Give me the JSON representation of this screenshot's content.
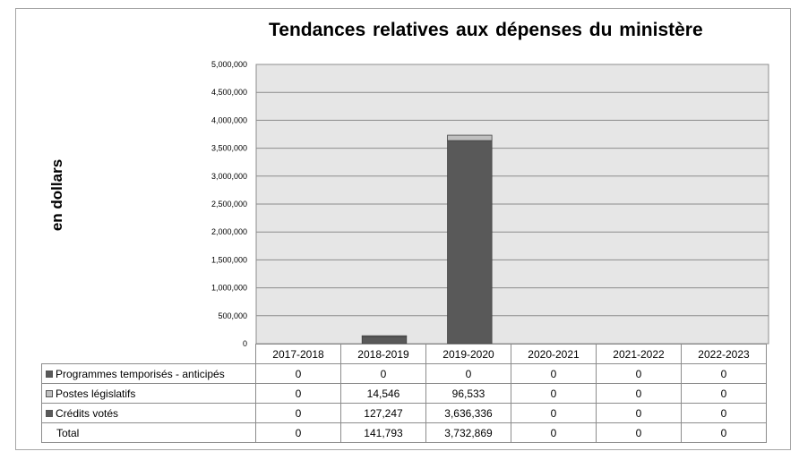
{
  "chart_data": {
    "type": "bar",
    "stacked": true,
    "title": "Tendances relatives aux dépenses du ministère",
    "ylabel": "en dollars",
    "xlabel": "",
    "ylim": [
      0,
      5000000
    ],
    "y_ticks": [
      0,
      500000,
      1000000,
      1500000,
      2000000,
      2500000,
      3000000,
      3500000,
      4000000,
      4500000,
      5000000
    ],
    "y_tick_labels": [
      "0",
      "500,000",
      "1,000,000",
      "1,500,000",
      "2,000,000",
      "2,500,000",
      "3,000,000",
      "3,500,000",
      "4,000,000",
      "4,500,000",
      "5,000,000"
    ],
    "grid": true,
    "legend": "data-table",
    "categories": [
      "2017-2018",
      "2018-2019",
      "2019-2020",
      "2020-2021",
      "2021-2022",
      "2022-2023"
    ],
    "series": [
      {
        "name": "Programmes temporisés - anticipés",
        "values": [
          0,
          0,
          0,
          0,
          0,
          0
        ],
        "labels": [
          "0",
          "0",
          "0",
          "0",
          "0",
          "0"
        ],
        "color": "#595959"
      },
      {
        "name": "Postes législatifs",
        "values": [
          0,
          14546,
          96533,
          0,
          0,
          0
        ],
        "labels": [
          "0",
          "14,546",
          "96,533",
          "0",
          "0",
          "0"
        ],
        "color": "#bfbfbf"
      },
      {
        "name": "Crédits votés",
        "values": [
          0,
          127247,
          3636336,
          0,
          0,
          0
        ],
        "labels": [
          "0",
          "127,247",
          "3,636,336",
          "0",
          "0",
          "0"
        ],
        "color": "#595959"
      }
    ],
    "total": {
      "name": "Total",
      "labels": [
        "0",
        "141,793",
        "3,732,869",
        "0",
        "0",
        "0"
      ]
    }
  },
  "colors": {
    "plot_background": "#e6e6e6",
    "gridline": "#8c8c8c"
  }
}
